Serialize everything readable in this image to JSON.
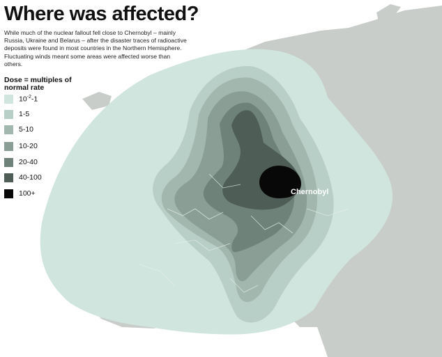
{
  "title": "Where was affected?",
  "subtitle": "While much of the nuclear fallout fell close to Chernobyl – mainly Russia, Ukraine and Belarus – after the disaster traces of radioactive deposits were found in most countries in the Northern Hemisphere. Fluctuating winds meant some areas were affected worse than others.",
  "legend": {
    "title": "Dose = multiples of normal rate",
    "items": [
      {
        "label": "10",
        "sup": "-2",
        "suffix": "-1",
        "color": "#cfe5dd"
      },
      {
        "label": "1-5",
        "color": "#b8cfc7"
      },
      {
        "label": "5-10",
        "color": "#a2b7ae"
      },
      {
        "label": "10-20",
        "color": "#8a9e96"
      },
      {
        "label": "20-40",
        "color": "#6f827a"
      },
      {
        "label": "40-100",
        "color": "#4e5e57"
      },
      {
        "label": "100+",
        "color": "#080808"
      }
    ]
  },
  "labels": {
    "chernobyl": "Chernobyl"
  },
  "colors": {
    "background": "#ffffff",
    "land_unaffected": "#c6cbc8",
    "land_affected_tint": "#cfe5dd"
  }
}
